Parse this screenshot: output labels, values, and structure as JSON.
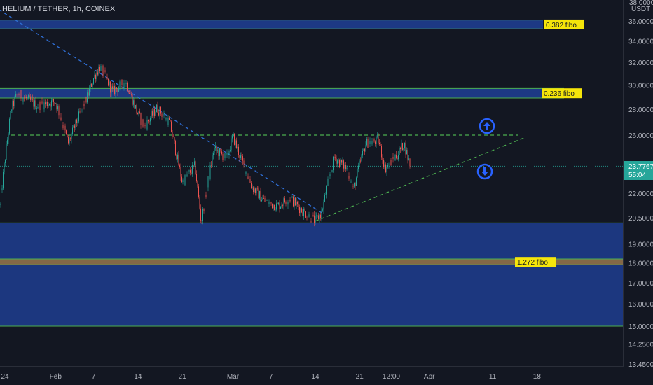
{
  "header": {
    "symbol_title": "HELIUM / TETHER, 1h, COINEX"
  },
  "price_axis": {
    "currency": "USDT",
    "top_partial_label": "38.0000",
    "bottom_label": "13.4500"
  },
  "current_price": {
    "value": "23.7767",
    "countdown": "55:04",
    "color": "#26a69a"
  },
  "fibo_labels": {
    "f0382": "0.382 fibo",
    "f0236": "0.236 fibo",
    "f1272": "1.272 fibo"
  },
  "colors": {
    "background": "#131722",
    "up": "#26a69a",
    "down": "#ef5350",
    "zone": "#1f3d8f",
    "zone_border": "#4caf50",
    "brown_zone": "#8a6a44",
    "trendline_blue": "#2f6fd6",
    "trendline_green": "#4caf50",
    "fibo_label_bg": "#f5e50a",
    "arrow": "#2962ff"
  },
  "icons": {
    "up_arrow": "arrow-up-circle-icon",
    "down_arrow": "arrow-down-circle-icon"
  },
  "chart_data": {
    "type": "candlestick",
    "title": "HELIUM / TETHER, 1h, COINEX",
    "ylabel": "USDT",
    "yscale": "log",
    "y_ticks": [
      36.0,
      34.0,
      32.0,
      30.0,
      28.0,
      26.0,
      24.0,
      22.0,
      20.5,
      19.0,
      18.0,
      17.0,
      16.0,
      15.0,
      14.25,
      13.45
    ],
    "y_tick_labels": [
      "36.0000",
      "34.0000",
      "32.0000",
      "30.0000",
      "28.0000",
      "26.0000",
      "",
      "22.0000",
      "20.5000",
      "19.0000",
      "18.0000",
      "17.0000",
      "16.0000",
      "15.0000",
      "14.2500",
      "13.4500"
    ],
    "x_tick_labels": [
      "24",
      "Feb",
      "7",
      "14",
      "21",
      "Mar",
      "7",
      "14",
      "21",
      "12:00",
      "Apr",
      "11",
      "18"
    ],
    "x_tick_dates": [
      "2022-01-24",
      "2022-02-01",
      "2022-02-07",
      "2022-02-14",
      "2022-02-21",
      "2022-03-01",
      "2022-03-07",
      "2022-03-14",
      "2022-03-21",
      "2022-03-26",
      "2022-04-01",
      "2022-04-11",
      "2022-04-18"
    ],
    "price_path": [
      {
        "date": "2022-01-22",
        "price": 24.0
      },
      {
        "date": "2022-01-23",
        "price": 20.4
      },
      {
        "date": "2022-01-25",
        "price": 28.0
      },
      {
        "date": "2022-01-26",
        "price": 29.3
      },
      {
        "date": "2022-01-29",
        "price": 28.3
      },
      {
        "date": "2022-02-01",
        "price": 28.6
      },
      {
        "date": "2022-02-03",
        "price": 25.4
      },
      {
        "date": "2022-02-06",
        "price": 29.0
      },
      {
        "date": "2022-02-07",
        "price": 30.6
      },
      {
        "date": "2022-02-08",
        "price": 31.6
      },
      {
        "date": "2022-02-10",
        "price": 29.4
      },
      {
        "date": "2022-02-12",
        "price": 30.3
      },
      {
        "date": "2022-02-14",
        "price": 27.6
      },
      {
        "date": "2022-02-15",
        "price": 26.6
      },
      {
        "date": "2022-02-17",
        "price": 28.1
      },
      {
        "date": "2022-02-19",
        "price": 26.9
      },
      {
        "date": "2022-02-21",
        "price": 22.7
      },
      {
        "date": "2022-02-23",
        "price": 23.8
      },
      {
        "date": "2022-02-24",
        "price": 20.2
      },
      {
        "date": "2022-02-26",
        "price": 25.0
      },
      {
        "date": "2022-02-28",
        "price": 24.3
      },
      {
        "date": "2022-03-01",
        "price": 25.9
      },
      {
        "date": "2022-03-02",
        "price": 24.6
      },
      {
        "date": "2022-03-04",
        "price": 22.4
      },
      {
        "date": "2022-03-06",
        "price": 21.5
      },
      {
        "date": "2022-03-08",
        "price": 21.2
      },
      {
        "date": "2022-03-10",
        "price": 21.7
      },
      {
        "date": "2022-03-12",
        "price": 20.9
      },
      {
        "date": "2022-03-14",
        "price": 20.3
      },
      {
        "date": "2022-03-15",
        "price": 20.8
      },
      {
        "date": "2022-03-17",
        "price": 24.4
      },
      {
        "date": "2022-03-19",
        "price": 23.6
      },
      {
        "date": "2022-03-20",
        "price": 22.2
      },
      {
        "date": "2022-03-21",
        "price": 23.9
      },
      {
        "date": "2022-03-22",
        "price": 25.4
      },
      {
        "date": "2022-03-24",
        "price": 25.6
      },
      {
        "date": "2022-03-25",
        "price": 23.6
      },
      {
        "date": "2022-03-27",
        "price": 24.6
      },
      {
        "date": "2022-03-28",
        "price": 25.4
      },
      {
        "date": "2022-03-29",
        "price": 23.8
      }
    ],
    "levels": {
      "resistance": 26.0,
      "current": 23.7767
    },
    "fibo_zones": [
      {
        "label": "0.382 fibo",
        "top": 36.1,
        "bottom": 35.2
      },
      {
        "label": "0.236 fibo",
        "top": 29.7,
        "bottom": 28.9
      },
      {
        "label": "1.272 fibo",
        "top": 18.2,
        "bottom": 17.9
      }
    ],
    "support_zone": {
      "top": 20.2,
      "bottom": 15.0
    },
    "trendlines": [
      {
        "name": "descending",
        "from": {
          "date": "2022-01-23",
          "price": 37.2
        },
        "to": {
          "date": "2022-03-15",
          "price": 20.8
        }
      },
      {
        "name": "ascending",
        "from": {
          "date": "2022-03-14",
          "price": 20.3
        },
        "to": {
          "date": "2022-04-16",
          "price": 25.8
        }
      },
      {
        "name": "horizontal-resistance",
        "from": {
          "date": "2022-01-25",
          "price": 26.0
        },
        "to": {
          "date": "2022-04-15",
          "price": 26.0
        }
      }
    ],
    "grid": false,
    "legend": "none"
  }
}
